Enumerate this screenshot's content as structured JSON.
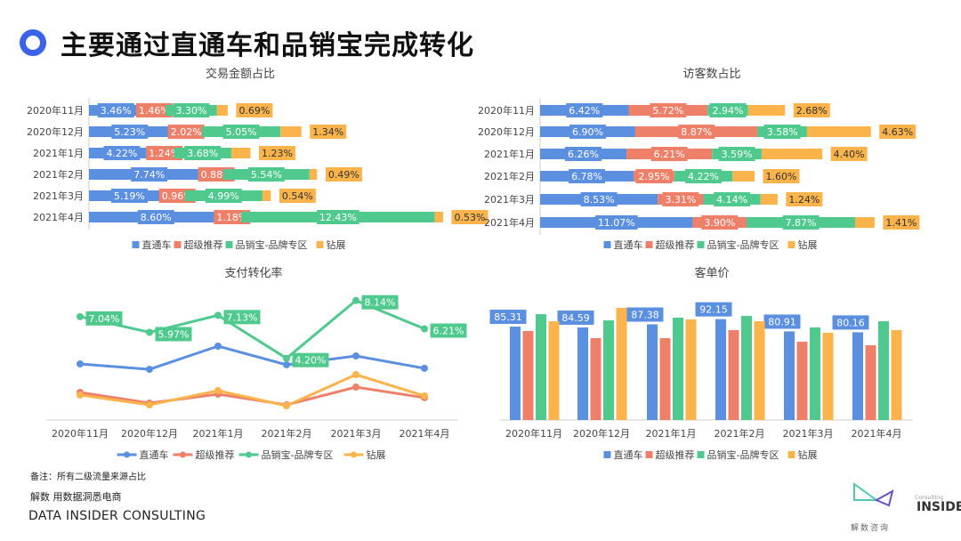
{
  "header": {
    "title": "主要通过直通车和品销宝完成转化",
    "accent": "#3b63e8"
  },
  "colors": {
    "直通车": "#5b8fe0",
    "超级推荐": "#ee806a",
    "品销宝-品牌专区": "#4fc98e",
    "钻展": "#fbb34b"
  },
  "legend": [
    "直通车",
    "超级推荐",
    "品销宝-品牌专区",
    "钻展"
  ],
  "chart_data": [
    {
      "type": "bar",
      "orientation": "horizontal",
      "stacked": true,
      "title": "交易金额占比",
      "categories": [
        "2020年11月",
        "2020年12月",
        "2021年1月",
        "2021年2月",
        "2021年3月",
        "2021年4月"
      ],
      "series": [
        {
          "name": "直通车",
          "values": [
            3.46,
            5.23,
            4.22,
            7.74,
            5.19,
            8.6
          ],
          "labels": [
            "3.46%",
            "5.23%",
            "4.22%",
            "7.74%",
            "5.19%",
            "8.60%"
          ]
        },
        {
          "name": "超级推荐",
          "values": [
            1.46,
            2.02,
            1.24,
            0.88,
            0.96,
            1.18
          ],
          "labels": [
            "1.46%",
            "2.02%",
            "1.24%",
            "0.88%",
            "0.96%",
            "1.18%"
          ]
        },
        {
          "name": "品销宝-品牌专区",
          "values": [
            3.3,
            5.05,
            3.68,
            5.54,
            4.99,
            12.43
          ],
          "labels": [
            "3.30%",
            "5.05%",
            "3.68%",
            "5.54%",
            "4.99%",
            "12.43%"
          ]
        },
        {
          "name": "钻展",
          "values": [
            0.69,
            1.34,
            1.23,
            0.49,
            0.54,
            0.53
          ],
          "labels": [
            "0.69%",
            "1.34%",
            "1.23%",
            "0.49%",
            "0.54%",
            "0.53%"
          ]
        }
      ],
      "legend_placement": "bottom",
      "grid": false
    },
    {
      "type": "bar",
      "orientation": "horizontal",
      "stacked": true,
      "title": "访客数占比",
      "categories": [
        "2020年11月",
        "2020年12月",
        "2021年1月",
        "2021年2月",
        "2021年3月",
        "2021年4月"
      ],
      "series": [
        {
          "name": "直通车",
          "values": [
            6.42,
            6.9,
            6.26,
            6.78,
            8.53,
            11.07
          ],
          "labels": [
            "6.42%",
            "6.90%",
            "6.26%",
            "6.78%",
            "8.53%",
            "11.07%"
          ]
        },
        {
          "name": "超级推荐",
          "values": [
            5.72,
            8.87,
            6.21,
            2.95,
            3.31,
            3.9
          ],
          "labels": [
            "5.72%",
            "8.87%",
            "6.21%",
            "2.95%",
            "3.31%",
            "3.90%"
          ]
        },
        {
          "name": "品销宝-品牌专区",
          "values": [
            2.94,
            3.58,
            3.59,
            4.22,
            4.14,
            7.87
          ],
          "labels": [
            "2.94%",
            "3.58%",
            "3.59%",
            "4.22%",
            "4.14%",
            "7.87%"
          ]
        },
        {
          "name": "钻展",
          "values": [
            2.68,
            4.63,
            4.4,
            1.6,
            1.24,
            1.41
          ],
          "labels": [
            "2.68%",
            "4.63%",
            "4.40%",
            "1.60%",
            "1.24%",
            "1.41%"
          ]
        }
      ],
      "legend_placement": "bottom",
      "grid": false
    },
    {
      "type": "line",
      "title": "支付转化率",
      "categories": [
        "2020年11月",
        "2020年12月",
        "2021年1月",
        "2021年2月",
        "2021年3月",
        "2021年4月"
      ],
      "series": [
        {
          "name": "直通车",
          "values": [
            3.82,
            3.45,
            5.03,
            3.76,
            4.36,
            3.52
          ]
        },
        {
          "name": "超级推荐",
          "values": [
            1.88,
            1.15,
            1.76,
            1.03,
            2.24,
            1.52
          ]
        },
        {
          "name": "品销宝-品牌专区",
          "values": [
            7.04,
            5.97,
            7.13,
            4.2,
            8.14,
            6.21
          ],
          "labels": [
            "7.04%",
            "5.97%",
            "7.13%",
            "4.20%",
            "8.14%",
            "6.21%"
          ]
        },
        {
          "name": "钻展",
          "values": [
            1.7,
            1.03,
            2.0,
            0.97,
            3.09,
            1.64
          ]
        }
      ],
      "ylim": [
        0,
        9
      ],
      "legend_placement": "bottom",
      "grid": false
    },
    {
      "type": "bar",
      "title": "客单价",
      "categories": [
        "2020年11月",
        "2020年12月",
        "2021年1月",
        "2021年2月",
        "2021年3月",
        "2021年4月"
      ],
      "series": [
        {
          "name": "直通车",
          "values": [
            85.31,
            84.59,
            87.38,
            92.15,
            80.91,
            80.16
          ],
          "labels": [
            "85.31",
            "84.59",
            "87.38",
            "92.15",
            "80.91",
            "80.16"
          ]
        },
        {
          "name": "超级推荐",
          "values": [
            81.3,
            74.8,
            74.8,
            82.1,
            71.5,
            68.3
          ]
        },
        {
          "name": "品销宝-品牌专区",
          "values": [
            96.7,
            91.0,
            93.5,
            95.1,
            84.6,
            90.2
          ]
        },
        {
          "name": "钻展",
          "values": [
            90.2,
            102.4,
            91.9,
            90.2,
            79.7,
            82.1
          ]
        }
      ],
      "ylim": [
        0,
        110
      ],
      "legend_placement": "bottom",
      "grid": false
    }
  ],
  "footer": {
    "note": "备注：所有二级流量来源占比",
    "tagline": "解数 用数据洞悉电商",
    "brand": "DATA INSIDER CONSULTING",
    "logo_text": "INSIDER",
    "logo_sub": "Consulting",
    "logo_cn": "解数咨询"
  }
}
